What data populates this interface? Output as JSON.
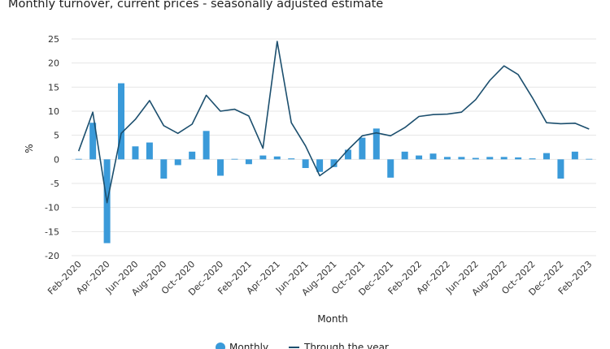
{
  "chart_data": {
    "type": "bar+line",
    "title": "Monthly turnover, current prices - seasonally adjusted estimate",
    "xlabel": "Month",
    "ylabel": "%",
    "ylim": [
      -20,
      25
    ],
    "yticks": [
      -20,
      -15,
      -10,
      -5,
      0,
      5,
      10,
      15,
      20,
      25
    ],
    "grid": "horizontal",
    "legend_position": "bottom",
    "colors": {
      "monthly": "#3a9ad9",
      "through_the_year": "#1c4f6e",
      "grid": "#e6e6e6"
    },
    "categories": [
      "Feb–2020",
      "Mar–2020",
      "Apr–2020",
      "May–2020",
      "Jun–2020",
      "Jul–2020",
      "Aug–2020",
      "Sep–2020",
      "Oct–2020",
      "Nov–2020",
      "Dec–2020",
      "Jan–2021",
      "Feb–2021",
      "Mar–2021",
      "Apr–2021",
      "May–2021",
      "Jun–2021",
      "Jul–2021",
      "Aug–2021",
      "Sep–2021",
      "Oct–2021",
      "Nov–2021",
      "Dec–2021",
      "Jan–2022",
      "Feb–2022",
      "Mar–2022",
      "Apr–2022",
      "May–2022",
      "Jun–2022",
      "Jul–2022",
      "Aug–2022",
      "Sep–2022",
      "Oct–2022",
      "Nov–2022",
      "Dec–2022",
      "Jan–2023",
      "Feb–2023"
    ],
    "tick_labels": [
      "Feb–2020",
      "Apr–2020",
      "Jun–2020",
      "Aug–2020",
      "Oct–2020",
      "Dec–2020",
      "Feb–2021",
      "Apr–2021",
      "Jun–2021",
      "Aug–2021",
      "Oct–2021",
      "Dec–2021",
      "Feb–2022",
      "Apr–2022",
      "Jun–2022",
      "Aug–2022",
      "Oct–2022",
      "Dec–2022",
      "Feb–2023"
    ],
    "series": [
      {
        "name": "Monthly",
        "kind": "bar",
        "values": [
          0.1,
          7.6,
          -17.4,
          15.8,
          2.7,
          3.5,
          -4.0,
          -1.2,
          1.6,
          5.9,
          -3.4,
          0.1,
          -1.0,
          0.8,
          0.6,
          0.2,
          -1.8,
          -2.6,
          -1.6,
          2.0,
          4.5,
          6.4,
          -3.8,
          1.6,
          0.8,
          1.2,
          0.5,
          0.5,
          0.3,
          0.5,
          0.5,
          0.4,
          0.2,
          1.3,
          -4.0,
          1.6,
          0.1
        ]
      },
      {
        "name": "Through the year",
        "kind": "line",
        "values": [
          1.7,
          9.8,
          -9.0,
          5.4,
          8.3,
          12.2,
          7.0,
          5.4,
          7.3,
          13.3,
          10.0,
          10.4,
          9.0,
          2.3,
          24.5,
          7.6,
          2.8,
          -3.4,
          -1.3,
          2.0,
          4.9,
          5.5,
          4.9,
          6.6,
          8.9,
          9.3,
          9.4,
          9.8,
          12.4,
          16.4,
          19.4,
          17.6,
          12.8,
          7.6,
          7.4,
          7.5,
          6.3
        ]
      }
    ]
  }
}
